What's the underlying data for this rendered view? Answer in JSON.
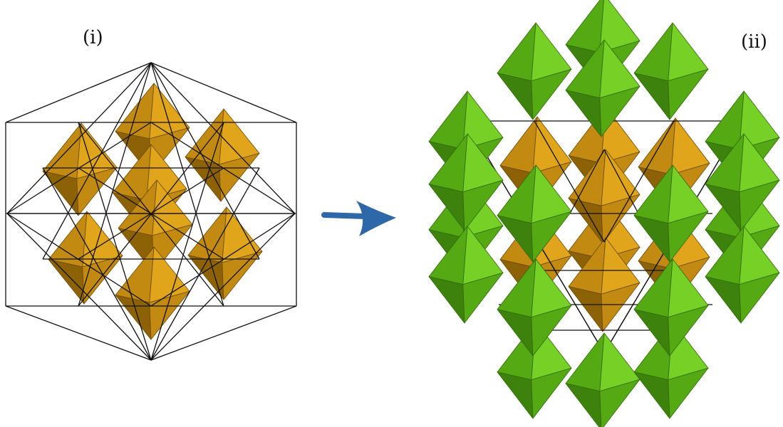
{
  "labels": {
    "panel_i": "(i)",
    "panel_ii": "(ii)"
  },
  "colors": {
    "gold_light": "#e0a51a",
    "gold_mid": "#c28a10",
    "gold_dark": "#8d6206",
    "green_light": "#76d025",
    "green_mid": "#55aa14",
    "green_dark": "#3c820c",
    "arrow": "#2f68a8",
    "line": "#111111"
  },
  "icons": {
    "arrow": "right-arrow-icon"
  }
}
